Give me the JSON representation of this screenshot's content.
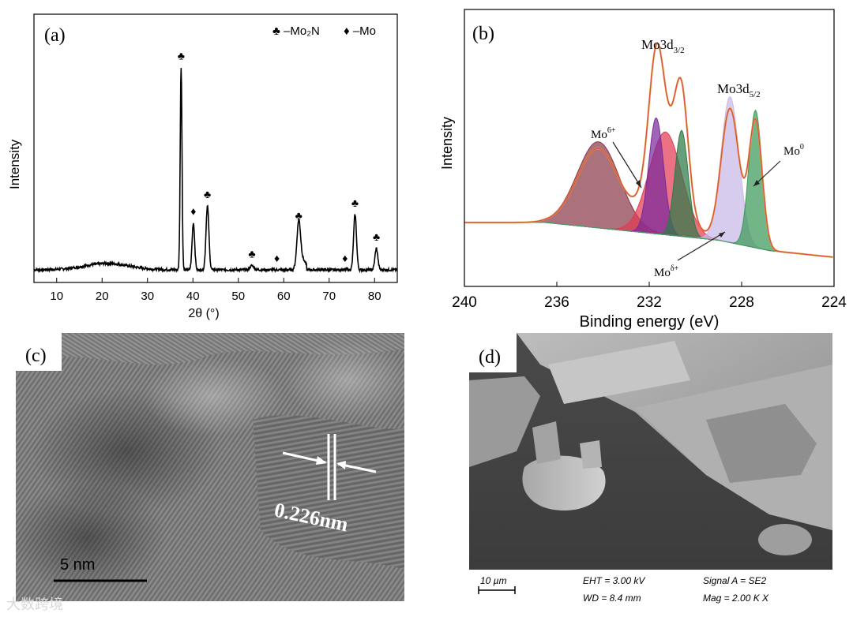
{
  "panels": {
    "a": {
      "label": "(a)"
    },
    "b": {
      "label": "(b)"
    },
    "c": {
      "label": "(c)",
      "lattice_label": "0.226nm",
      "scale_bar": "5 nm"
    },
    "d": {
      "label": "(d)",
      "scale_bar": "10 µm",
      "info": [
        "EHT = 3.00 kV",
        "WD = 8.4 mm",
        "Signal A = SE2",
        "Mag = 2.00 K X"
      ]
    }
  },
  "watermark": "大数跨境",
  "chart_data": [
    {
      "type": "line",
      "panel": "a",
      "ylabel": "Intensity",
      "xlabel": "2θ (°)",
      "xlim": [
        5,
        85
      ],
      "xticks": [
        10,
        20,
        30,
        40,
        50,
        60,
        70,
        80
      ],
      "legend": {
        "position": "top-right",
        "entries": [
          "♣ –Mo₂N",
          "♦ –Mo"
        ]
      },
      "peaks": [
        {
          "x": 37.4,
          "height": 0.95,
          "marker": "♣"
        },
        {
          "x": 40.1,
          "height": 0.22,
          "marker": "♦"
        },
        {
          "x": 43.2,
          "height": 0.3,
          "marker": "♣"
        },
        {
          "x": 53.0,
          "height": 0.02,
          "marker": "♣"
        },
        {
          "x": 58.5,
          "height": 0.0,
          "marker": "♦"
        },
        {
          "x": 63.3,
          "height": 0.2,
          "marker": "♣"
        },
        {
          "x": 73.5,
          "height": 0.0,
          "marker": "♦"
        },
        {
          "x": 75.7,
          "height": 0.26,
          "marker": "♣"
        },
        {
          "x": 80.4,
          "height": 0.1,
          "marker": "♣"
        }
      ]
    },
    {
      "type": "area",
      "panel": "b",
      "ylabel": "Intensity",
      "xlabel": "Binding energy (eV)",
      "xlim": [
        240,
        224
      ],
      "xticks": [
        240,
        236,
        232,
        228,
        224
      ],
      "annotations": [
        "Mo3d3/2",
        "Mo3d5/2",
        "Mo6+",
        "Mo0",
        "Moδ+"
      ],
      "components": [
        {
          "center": 234.2,
          "height": 0.52,
          "width": 1.3,
          "color": "#8b3a4a"
        },
        {
          "center": 231.3,
          "height": 0.62,
          "width": 1.0,
          "color": "#e23b55"
        },
        {
          "center": 231.7,
          "height": 0.7,
          "width": 0.45,
          "color": "#7a2a9a"
        },
        {
          "center": 230.6,
          "height": 0.64,
          "width": 0.4,
          "color": "#2e7a48"
        },
        {
          "center": 228.5,
          "height": 0.88,
          "width": 0.55,
          "color": "#c8b8e8"
        },
        {
          "center": 227.4,
          "height": 0.83,
          "width": 0.4,
          "color": "#3c9a5a"
        }
      ]
    }
  ]
}
